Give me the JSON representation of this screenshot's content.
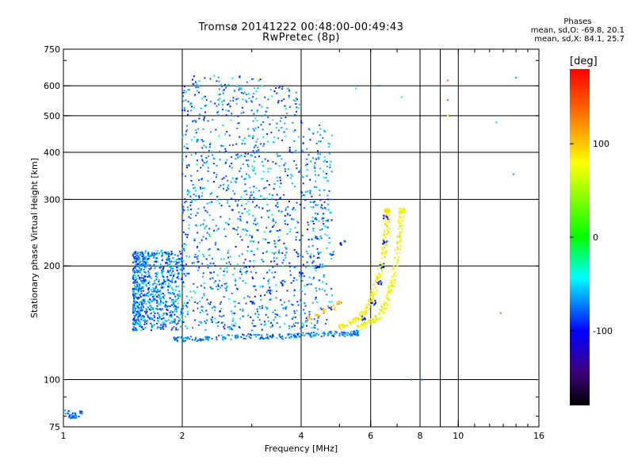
{
  "chart_data": {
    "type": "scatter",
    "title": "Tromsø 20141222 00:48:00-00:49:43",
    "subtitle": "RwPretec (8p)",
    "xlabel": "Frequency [MHz]",
    "ylabel": "Stationary phase Virtual Height [km]",
    "xscale": "log",
    "yscale": "log",
    "xlim": [
      1,
      16
    ],
    "ylim": [
      75,
      750
    ],
    "xticks": [
      1,
      2,
      4,
      6,
      8,
      10,
      16
    ],
    "yticks": [
      75,
      100,
      200,
      300,
      400,
      500,
      600,
      750
    ],
    "grid_x": [
      2,
      4,
      6,
      8,
      9,
      10
    ],
    "grid_y": [
      100,
      200,
      300,
      400,
      500,
      600
    ],
    "phase_stats": {
      "heading": "Phases",
      "line_o": "mean, sd,O:  -69.8, 20.1",
      "line_x": "mean, sd,X:  84.1, 25.7"
    },
    "colorbar": {
      "unit": "[deg]",
      "range": [
        -180,
        180
      ],
      "ticks": [
        100,
        0,
        -100
      ],
      "colors": [
        "#ff0000",
        "#ffff00",
        "#00ff00",
        "#00ffff",
        "#0000ff",
        "#000000"
      ]
    },
    "series": [
      {
        "trace": "low-freq-isolated",
        "x": [
          1.02,
          1.04,
          1.06,
          1.08,
          1.1,
          1.05
        ],
        "y": [
          82,
          80,
          81,
          80,
          82,
          79
        ],
        "phase": -75
      },
      {
        "trace": "diffuse-spread-F",
        "x_range": [
          1.5,
          4.8
        ],
        "y_range": [
          135,
          640
        ],
        "phase": -70
      },
      {
        "trace": "lower-trace",
        "x": [
          1.9,
          2.1,
          2.4,
          2.8,
          3.2,
          3.6,
          4.0,
          4.5,
          5.0,
          5.5
        ],
        "y": [
          128,
          128,
          129,
          130,
          130,
          130,
          131,
          132,
          132,
          133
        ],
        "phase": -70
      },
      {
        "trace": "second-hop-arc",
        "x": [
          3.0,
          3.3,
          3.6,
          4.0,
          4.4,
          4.8,
          5.1
        ],
        "y": [
          160,
          170,
          180,
          190,
          200,
          215,
          230
        ],
        "phase": -90
      },
      {
        "trace": "O-mode-cusp",
        "x": [
          5.0,
          5.3,
          5.6,
          5.9,
          6.1,
          6.3,
          6.5,
          6.6,
          6.6
        ],
        "y": [
          138,
          140,
          145,
          155,
          170,
          190,
          220,
          250,
          280
        ],
        "phase": 85
      },
      {
        "trace": "X-mode-cusp",
        "x": [
          5.6,
          6.0,
          6.3,
          6.6,
          6.8,
          7.0,
          7.1,
          7.2
        ],
        "y": [
          138,
          142,
          148,
          160,
          180,
          210,
          245,
          280
        ],
        "phase": 75
      },
      {
        "trace": "blue-cusp",
        "x": [
          5.8,
          6.1,
          6.3,
          6.4,
          6.5,
          6.55
        ],
        "y": [
          145,
          160,
          180,
          200,
          230,
          270
        ],
        "phase": -95
      },
      {
        "trace": "orange-cluster",
        "x": [
          4.2,
          4.4,
          4.6,
          4.8,
          5.0
        ],
        "y": [
          145,
          148,
          152,
          156,
          160
        ],
        "phase": 115
      }
    ]
  }
}
